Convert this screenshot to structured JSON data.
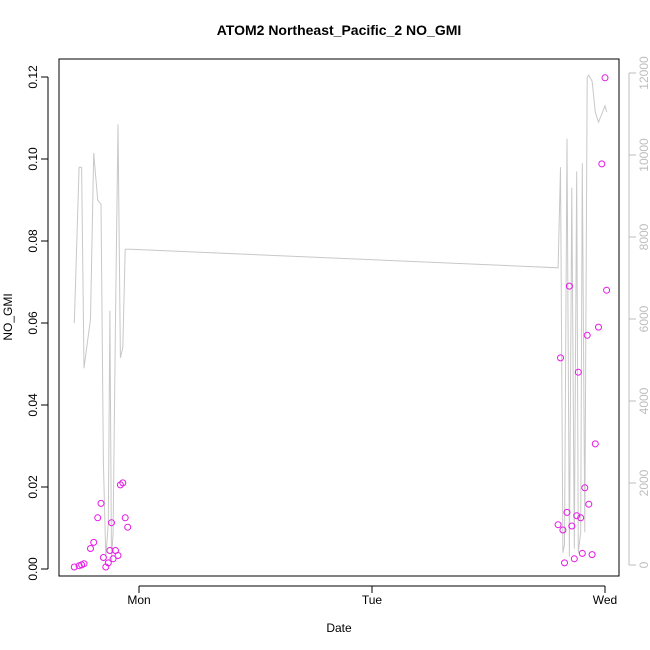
{
  "chart_data": {
    "type": "scatter",
    "title": "ATOM2 Northeast_Pacific_2 NO_GMI",
    "xlabel": "Date",
    "ylabel": "NO_GMI",
    "x_ticks": [
      "Mon",
      "Tue",
      "Wed"
    ],
    "ylim": [
      0,
      0.125
    ],
    "y_ticks": [
      "0.00",
      "0.02",
      "0.04",
      "0.06",
      "0.08",
      "0.10",
      "0.12"
    ],
    "y2lim": [
      0,
      12500
    ],
    "y2_ticks": [
      "0",
      "2000",
      "4000",
      "6000",
      "8000",
      "10000",
      "12000"
    ],
    "colors": {
      "points": "#e619e6",
      "line": "#c8c8c8",
      "secondary_axis": "#bebebe"
    },
    "series": [
      {
        "role": "points",
        "x": [
          "Sun 17:20",
          "Sun 17:50",
          "Sun 18:05",
          "Sun 18:20",
          "Sun 19:00",
          "Sun 19:20",
          "Sun 19:45",
          "Sun 20:05",
          "Sun 20:20",
          "Sun 20:35",
          "Sun 20:50",
          "Sun 21:00",
          "Sun 21:10",
          "Sun 21:20",
          "Sun 21:35",
          "Sun 21:50",
          "Sun 22:05",
          "Sun 22:20",
          "Sun 22:35",
          "Sun 22:50",
          "Tue 19:10",
          "Tue 19:25",
          "Tue 19:40",
          "Tue 19:50",
          "Tue 20:05",
          "Tue 20:20",
          "Tue 20:35",
          "Tue 20:50",
          "Tue 21:05",
          "Tue 21:15",
          "Tue 21:30",
          "Tue 21:40",
          "Tue 21:55",
          "Tue 22:10",
          "Tue 22:20",
          "Tue 22:40",
          "Tue 23:00",
          "Tue 23:20"
        ],
        "values": [
          0.0005,
          0.0008,
          0.001,
          0.0013,
          0.005,
          0.0065,
          0.0125,
          0.016,
          0.0028,
          0.0005,
          0.0015,
          0.0045,
          0.0113,
          0.0025,
          0.0045,
          0.0033,
          0.0205,
          0.021,
          0.0125,
          0.0102,
          0.0108,
          0.0515,
          0.0095,
          0.0015,
          0.0138,
          0.069,
          0.0105,
          0.0025,
          0.013,
          0.048,
          0.0125,
          0.0038,
          0.0198,
          0.057,
          0.0158,
          0.0035,
          0.0305,
          0.059
        ]
      },
      {
        "role": "points-extra",
        "x": [
          "Tue 23:40",
          "Wed 00:00",
          "Wed 00:10"
        ],
        "values": [
          0.0988,
          0.1198,
          0.068
        ]
      },
      {
        "role": "line",
        "x": [
          "Sun 17:20",
          "Sun 17:50",
          "Sun 18:05",
          "Sun 18:20",
          "Sun 19:00",
          "Sun 19:20",
          "Sun 19:45",
          "Sun 20:05",
          "Sun 20:20",
          "Sun 20:35",
          "Sun 20:50",
          "Sun 21:00",
          "Sun 21:10",
          "Sun 21:20",
          "Sun 21:35",
          "Sun 21:50",
          "Sun 22:05",
          "Sun 22:20",
          "Sun 22:35",
          "Sun 22:50",
          "Sun 23:10",
          "Tue 19:10",
          "Tue 19:25",
          "Tue 19:40",
          "Tue 19:50",
          "Tue 20:05",
          "Tue 20:20",
          "Tue 20:35",
          "Tue 20:50",
          "Tue 21:05",
          "Tue 21:15",
          "Tue 21:30",
          "Tue 21:40",
          "Tue 21:55",
          "Tue 22:10",
          "Tue 22:20",
          "Tue 22:40",
          "Tue 23:00",
          "Tue 23:20",
          "Tue 23:40",
          "Wed 00:00",
          "Wed 00:10"
        ],
        "values": [
          5900,
          9700,
          9700,
          4800,
          6000,
          10050,
          8900,
          8800,
          2500,
          200,
          1000,
          6200,
          100,
          800,
          6000,
          10750,
          5050,
          5300,
          7700,
          7700,
          7700,
          7250,
          9700,
          300,
          500,
          10400,
          200,
          9200,
          400,
          9600,
          300,
          800,
          9800,
          800,
          11900,
          11950,
          11800,
          11050,
          10800,
          11000,
          11200,
          11050
        ]
      }
    ]
  }
}
